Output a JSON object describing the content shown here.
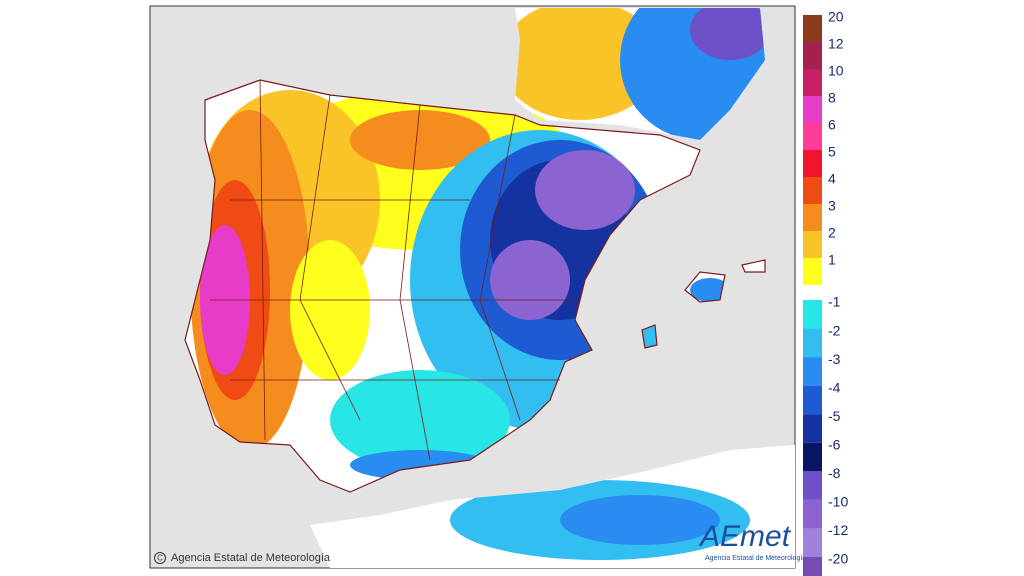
{
  "legend": {
    "items": [
      {
        "label": "20",
        "color": "#8b3a1e"
      },
      {
        "label": "12",
        "color": "#a3204f"
      },
      {
        "label": "10",
        "color": "#c81e63"
      },
      {
        "label": "8",
        "color": "#e63cc8"
      },
      {
        "label": "6",
        "color": "#ff3c96"
      },
      {
        "label": "5",
        "color": "#f0142d"
      },
      {
        "label": "4",
        "color": "#f04b14"
      },
      {
        "label": "3",
        "color": "#f58c1e"
      },
      {
        "label": "2",
        "color": "#fac328"
      },
      {
        "label": "1",
        "color": "#ffff1e"
      },
      {
        "label": "-1",
        "color": "#28e6e6"
      },
      {
        "label": "-2",
        "color": "#32bef0"
      },
      {
        "label": "-3",
        "color": "#288cf0"
      },
      {
        "label": "-4",
        "color": "#1e5ad2"
      },
      {
        "label": "-5",
        "color": "#1432a0"
      },
      {
        "label": "-6",
        "color": "#0a1464"
      },
      {
        "label": "-8",
        "color": "#6e50c8"
      },
      {
        "label": "-10",
        "color": "#8c64d2"
      },
      {
        "label": "-12",
        "color": "#a082dc"
      },
      {
        "label": "-20",
        "color": "#784ab4"
      }
    ]
  },
  "credit": "Agencia Estatal de Meteorología",
  "logo": {
    "name": "AEmet",
    "subtitle": "Agencia Estatal de Meteorología"
  }
}
